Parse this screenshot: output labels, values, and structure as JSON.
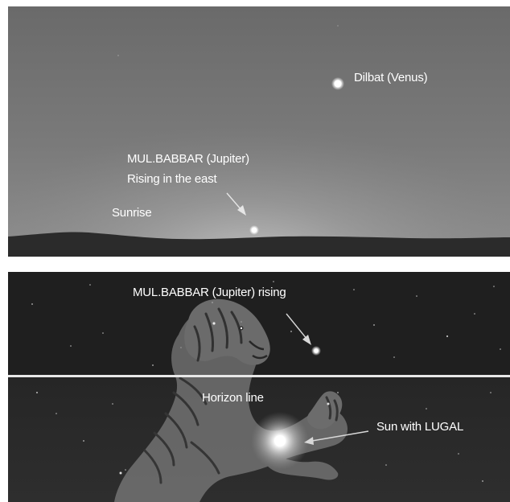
{
  "top_panel": {
    "venus_label": "Dilbat (Venus)",
    "jupiter_label_line1": "MUL.BABBAR  (Jupiter)",
    "jupiter_label_line2": "Rising in the east",
    "sunrise_label": "Sunrise"
  },
  "bottom_panel": {
    "jupiter_label": "MUL.BABBAR (Jupiter) rising",
    "horizon_label": "Horizon line",
    "sun_label": "Sun with LUGAL"
  },
  "colors": {
    "sky_top": "#6a6a6a",
    "sky_horizon_glow": "#c4c4c4",
    "ground": "#2b2b2b",
    "night_sky": "#1f1f1f",
    "label_text": "#ffffff",
    "lion_figure": "#8a8a8a"
  }
}
